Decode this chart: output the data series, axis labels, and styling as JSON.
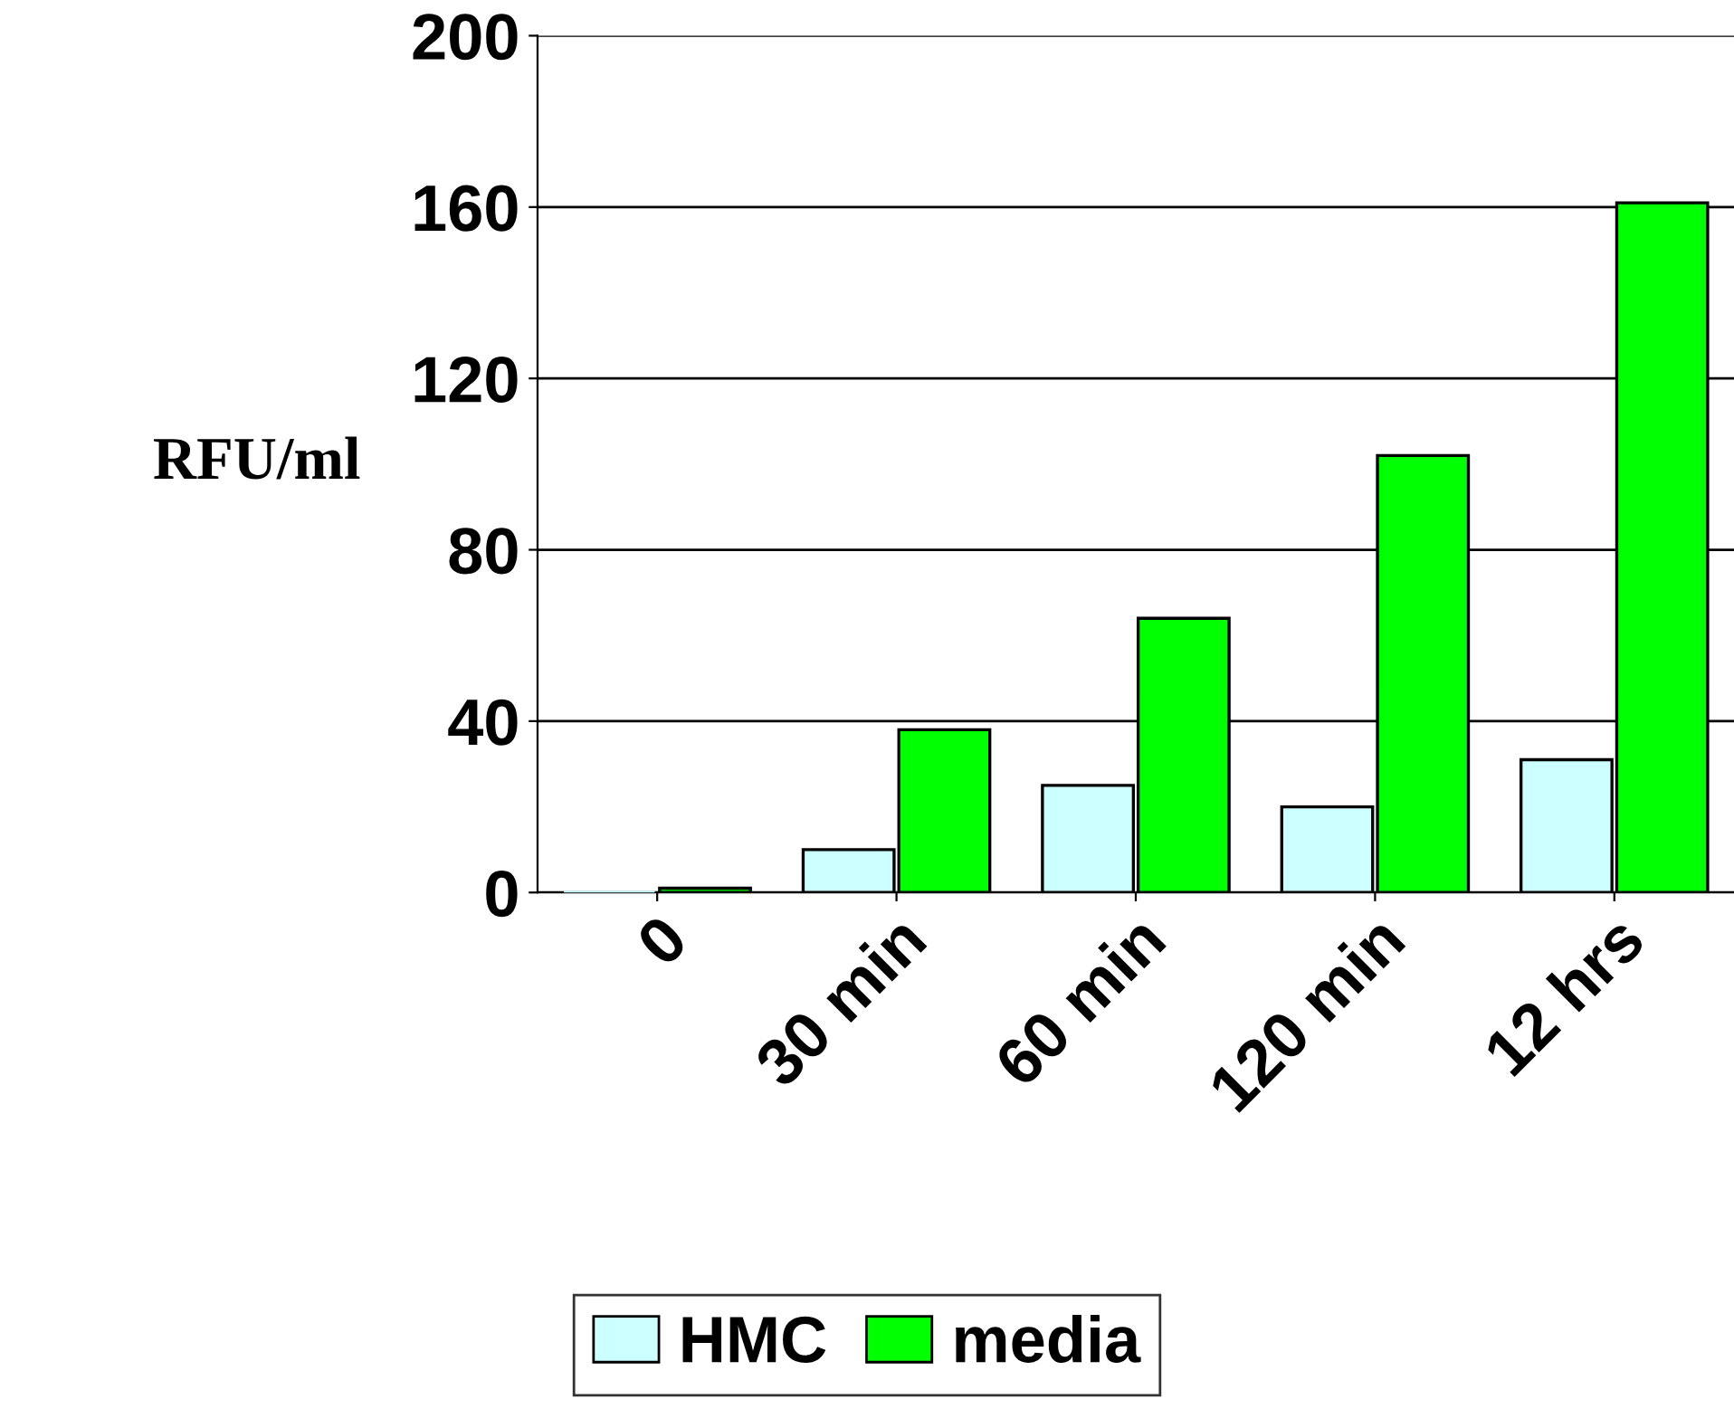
{
  "chart_data": {
    "type": "bar",
    "ylabel": "RFU/ml",
    "categories": [
      "0",
      "30 min",
      "60 min",
      "120 min",
      "12 hrs"
    ],
    "series": [
      {
        "name": "HMC",
        "color": "#ccffff",
        "values": [
          0,
          10,
          25,
          20,
          31
        ]
      },
      {
        "name": "media",
        "color": "#00ff00",
        "values": [
          1,
          38,
          64,
          102,
          161
        ]
      }
    ],
    "ylim": [
      0,
      200
    ],
    "yticks": [
      0,
      40,
      80,
      120,
      160,
      200
    ],
    "grid": "y",
    "legend": "bottom"
  }
}
